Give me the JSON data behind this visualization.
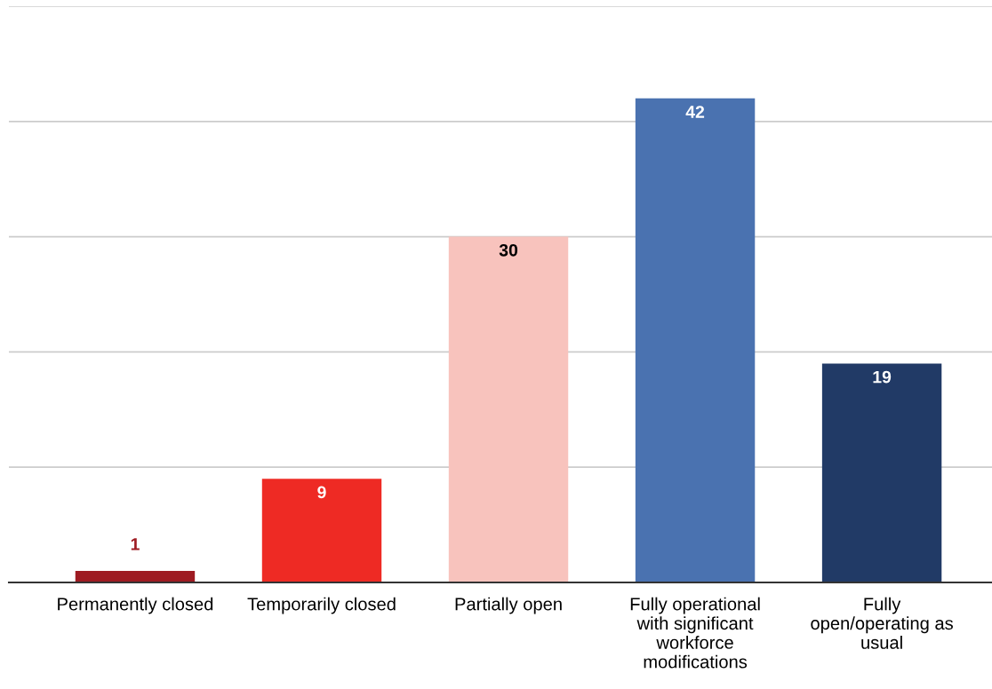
{
  "chart_data": {
    "type": "bar",
    "categories": [
      "Permanently closed",
      "Temporarily closed",
      "Partially open",
      "Fully operational with significant workforce modifications",
      "Fully open/operating as usual"
    ],
    "values": [
      1,
      9,
      30,
      42,
      19
    ],
    "colors": [
      "#9e1b22",
      "#ee2a24",
      "#f8c3bd",
      "#4a72b0",
      "#213a66"
    ],
    "ylim": [
      0,
      50
    ],
    "yticks": [
      {
        "value": 0,
        "label": null
      },
      {
        "value": 10,
        "label": null
      },
      {
        "value": 20,
        "label": null
      },
      {
        "value": 30,
        "label": null
      },
      {
        "value": 40,
        "label": null
      },
      {
        "value": 50,
        "label": null
      }
    ],
    "tick_labels": "x",
    "grid": "y",
    "data_labels": true
  }
}
